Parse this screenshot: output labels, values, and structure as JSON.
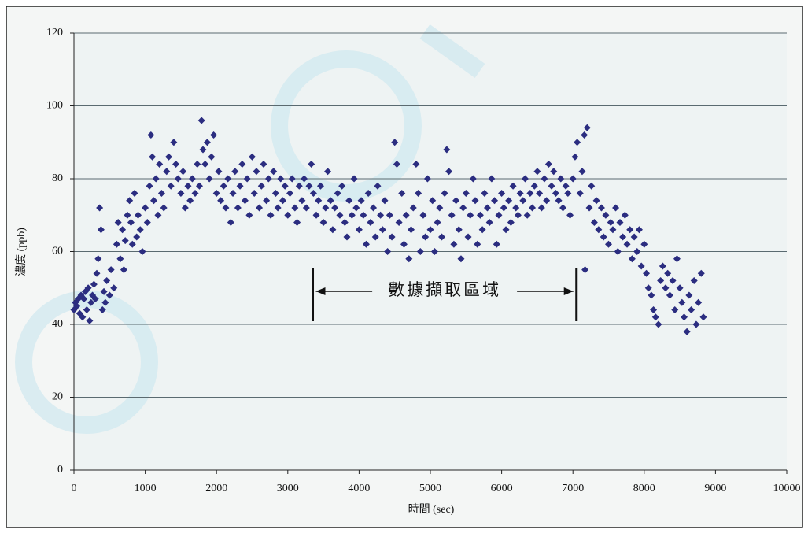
{
  "chart_data": {
    "type": "scatter",
    "x_label": "時間 (sec)",
    "y_label": "濃度 (ppb)",
    "color": "#2b2d80",
    "grid": true,
    "xlim": [
      0,
      10000
    ],
    "xticks": [
      0,
      1000,
      2000,
      3000,
      4000,
      5000,
      6000,
      7000,
      8000,
      9000,
      10000
    ],
    "ylim": [
      0,
      120
    ],
    "yticks": [
      0,
      20,
      40,
      60,
      80,
      100,
      120
    ],
    "annotation": {
      "text": "數據擷取區域",
      "x": [
        3350,
        7050
      ]
    },
    "x": [
      0,
      20,
      40,
      60,
      80,
      100,
      120,
      140,
      160,
      180,
      200,
      220,
      240,
      260,
      280,
      300,
      320,
      340,
      360,
      380,
      400,
      420,
      440,
      460,
      500,
      520,
      560,
      600,
      620,
      650,
      680,
      700,
      720,
      750,
      780,
      800,
      820,
      850,
      880,
      900,
      930,
      960,
      1000,
      1030,
      1060,
      1080,
      1100,
      1120,
      1150,
      1180,
      1200,
      1230,
      1260,
      1300,
      1330,
      1360,
      1400,
      1430,
      1460,
      1500,
      1530,
      1560,
      1600,
      1630,
      1660,
      1700,
      1730,
      1760,
      1790,
      1810,
      1840,
      1870,
      1900,
      1930,
      1960,
      2000,
      2030,
      2060,
      2100,
      2130,
      2160,
      2200,
      2230,
      2260,
      2300,
      2330,
      2360,
      2400,
      2430,
      2460,
      2500,
      2530,
      2560,
      2600,
      2630,
      2660,
      2700,
      2730,
      2760,
      2800,
      2830,
      2860,
      2900,
      2930,
      2960,
      3000,
      3030,
      3060,
      3100,
      3130,
      3160,
      3200,
      3230,
      3260,
      3300,
      3330,
      3360,
      3400,
      3430,
      3460,
      3500,
      3530,
      3560,
      3600,
      3630,
      3660,
      3700,
      3730,
      3760,
      3800,
      3830,
      3860,
      3900,
      3930,
      3960,
      4000,
      4030,
      4060,
      4100,
      4130,
      4160,
      4200,
      4230,
      4260,
      4300,
      4330,
      4360,
      4400,
      4430,
      4460,
      4500,
      4530,
      4560,
      4600,
      4630,
      4660,
      4700,
      4730,
      4760,
      4800,
      4830,
      4860,
      4900,
      4930,
      4960,
      5000,
      5030,
      5060,
      5100,
      5130,
      5160,
      5200,
      5230,
      5260,
      5300,
      5330,
      5360,
      5400,
      5430,
      5460,
      5500,
      5530,
      5560,
      5600,
      5630,
      5660,
      5700,
      5730,
      5760,
      5800,
      5830,
      5860,
      5900,
      5930,
      5960,
      6000,
      6030,
      6060,
      6100,
      6130,
      6160,
      6200,
      6230,
      6260,
      6300,
      6330,
      6360,
      6400,
      6430,
      6460,
      6500,
      6530,
      6560,
      6600,
      6630,
      6660,
      6700,
      6730,
      6760,
      6800,
      6830,
      6860,
      6900,
      6930,
      6960,
      7000,
      7030,
      7060,
      7100,
      7130,
      7160,
      7170,
      7200,
      7230,
      7260,
      7300,
      7330,
      7360,
      7400,
      7430,
      7460,
      7500,
      7530,
      7560,
      7600,
      7630,
      7660,
      7700,
      7730,
      7760,
      7800,
      7830,
      7860,
      7900,
      7930,
      7960,
      8000,
      8030,
      8060,
      8100,
      8130,
      8160,
      8200,
      8230,
      8260,
      8300,
      8330,
      8360,
      8400,
      8430,
      8460,
      8500,
      8530,
      8560,
      8600,
      8630,
      8660,
      8700,
      8730,
      8760,
      8800,
      8830
    ],
    "values": [
      44,
      46,
      45,
      47,
      43,
      48,
      42,
      47,
      49,
      44,
      50,
      41,
      46,
      48,
      51,
      47,
      54,
      58,
      72,
      66,
      44,
      49,
      46,
      52,
      48,
      55,
      50,
      62,
      68,
      58,
      66,
      55,
      63,
      70,
      74,
      68,
      62,
      76,
      64,
      70,
      66,
      60,
      72,
      68,
      78,
      92,
      86,
      74,
      80,
      70,
      84,
      76,
      72,
      82,
      86,
      78,
      90,
      84,
      80,
      76,
      82,
      72,
      78,
      74,
      80,
      76,
      84,
      78,
      96,
      88,
      84,
      90,
      80,
      86,
      92,
      76,
      82,
      74,
      78,
      72,
      80,
      68,
      76,
      82,
      72,
      78,
      84,
      74,
      80,
      70,
      86,
      76,
      82,
      72,
      78,
      84,
      74,
      80,
      70,
      82,
      76,
      72,
      80,
      74,
      78,
      70,
      76,
      80,
      72,
      68,
      78,
      74,
      80,
      72,
      78,
      84,
      76,
      70,
      74,
      78,
      68,
      72,
      82,
      74,
      66,
      72,
      76,
      70,
      78,
      68,
      64,
      74,
      70,
      80,
      72,
      66,
      74,
      70,
      62,
      76,
      68,
      72,
      64,
      78,
      70,
      66,
      74,
      60,
      70,
      64,
      90,
      84,
      68,
      76,
      62,
      70,
      58,
      66,
      72,
      84,
      76,
      60,
      70,
      64,
      80,
      66,
      74,
      60,
      68,
      72,
      64,
      76,
      88,
      82,
      70,
      62,
      74,
      66,
      58,
      72,
      76,
      64,
      70,
      80,
      74,
      62,
      70,
      66,
      76,
      72,
      68,
      80,
      74,
      62,
      70,
      76,
      72,
      66,
      74,
      68,
      78,
      72,
      70,
      76,
      74,
      80,
      70,
      76,
      72,
      78,
      82,
      76,
      72,
      80,
      74,
      84,
      78,
      82,
      76,
      74,
      80,
      72,
      78,
      76,
      70,
      80,
      86,
      90,
      76,
      82,
      92,
      55,
      94,
      72,
      78,
      68,
      74,
      66,
      72,
      64,
      70,
      62,
      68,
      66,
      72,
      60,
      68,
      64,
      70,
      62,
      66,
      58,
      64,
      60,
      66,
      56,
      62,
      54,
      50,
      48,
      44,
      42,
      40,
      52,
      56,
      50,
      54,
      48,
      52,
      44,
      58,
      50,
      46,
      42,
      38,
      48,
      44,
      52,
      40,
      46,
      54,
      42
    ]
  }
}
